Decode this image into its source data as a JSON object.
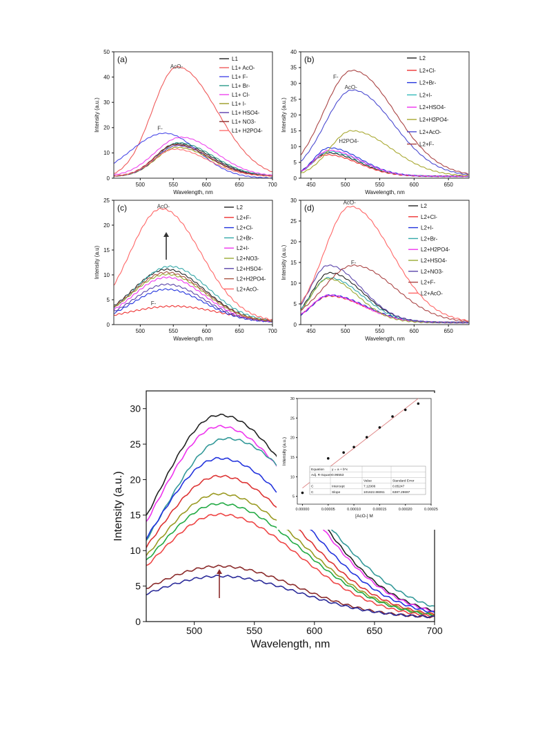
{
  "panels": [
    {
      "id": "a",
      "label": "(a)",
      "xlabel": "Wavelength, nm",
      "ylabel": "Intensity (a.u.)",
      "xlim": [
        460,
        700
      ],
      "ylim": [
        0,
        50
      ],
      "xticks": [
        500,
        550,
        600,
        650,
        700
      ],
      "yticks": [
        0,
        10,
        20,
        30,
        40,
        50
      ],
      "legend": [
        "L1",
        "L1+ AcO-",
        "L1+ F-",
        "L1+ Br-",
        "L1+ Cl-",
        "L1+ I-",
        "L1+ HSO4-",
        "L1+ NO3-",
        "L1+ H2PO4-"
      ],
      "annotations": [
        {
          "text": "AcO-",
          "x": 555,
          "y": 43.5
        },
        {
          "text": "F-",
          "x": 530,
          "y": 19
        }
      ]
    },
    {
      "id": "b",
      "label": "(b)",
      "xlabel": "Wavelength, nm",
      "ylabel": "Intensity (a.u.)",
      "xlim": [
        435,
        680
      ],
      "ylim": [
        0,
        40
      ],
      "xticks": [
        450,
        500,
        550,
        600,
        650
      ],
      "yticks": [
        0,
        5,
        10,
        15,
        20,
        25,
        30,
        35,
        40
      ],
      "legend": [
        "L2",
        "L2+Cl-",
        "L2+Br-",
        "L2+I-",
        "L2+HSO4-",
        "L2+H2PO4-",
        "L2+AcO-",
        "L2+F-"
      ],
      "annotations": [
        {
          "text": "F-",
          "x": 486,
          "y": 31.5
        },
        {
          "text": "AcO-",
          "x": 508,
          "y": 28.2
        },
        {
          "text": "H2PO4-",
          "x": 505,
          "y": 11.2
        }
      ]
    },
    {
      "id": "c",
      "label": "(c)",
      "xlabel": "Wavelength, nm",
      "ylabel": "Intensity (a.u)",
      "xlim": [
        460,
        700
      ],
      "ylim": [
        0,
        25
      ],
      "xticks": [
        500,
        550,
        600,
        650,
        700
      ],
      "yticks": [
        0,
        5,
        10,
        15,
        20,
        25
      ],
      "legend": [
        "L2",
        "L2+F-",
        "L2+Cl-",
        "L2+Br-",
        "L2+I-",
        "L2+NO3-",
        "L2+HSO4-",
        "L2+H2PO4-",
        "L2+AcO-"
      ],
      "annotations": [
        {
          "text": "AcO-",
          "x": 535,
          "y": 23.4
        },
        {
          "text": "F-",
          "x": 520,
          "y": 3.9
        }
      ]
    },
    {
      "id": "d",
      "label": "(d)",
      "xlabel": "Wavelength, nm",
      "ylabel": "Intensity (a.u.)",
      "xlim": [
        435,
        680
      ],
      "ylim": [
        0,
        30
      ],
      "xticks": [
        450,
        500,
        550,
        600,
        650
      ],
      "yticks": [
        0,
        5,
        10,
        15,
        20,
        25,
        30
      ],
      "legend": [
        "L2",
        "L2+Cl-",
        "L2+I-",
        "L2+Br-",
        "L2+H2PO4-",
        "L2+HSO4-",
        "L2+NO3-",
        "L2+F-",
        "L2+AcO-"
      ],
      "annotations": [
        {
          "text": "AcO-",
          "x": 506,
          "y": 29
        },
        {
          "text": "F-",
          "x": 512,
          "y": 14.5
        }
      ]
    },
    {
      "id": "e",
      "label": "",
      "xlabel": "Wavelength, nm",
      "ylabel": "Intensity (a.u.)",
      "xlim": [
        460,
        700
      ],
      "ylim": [
        0,
        32.5
      ],
      "xticks": [
        500,
        550,
        600,
        650,
        700
      ],
      "yticks": [
        0,
        5,
        10,
        15,
        20,
        25,
        30
      ],
      "legend": [],
      "annotations": []
    }
  ],
  "inset": {
    "ylabel": "Intensity (a.u.)",
    "xlabel": "[AcO-] M",
    "xlim": [
      -1e-05,
      0.00025
    ],
    "ylim": [
      3,
      30
    ],
    "xticks": [
      "0.00000",
      "0.00005",
      "0.00010",
      "0.00015",
      "0.00020",
      "0.00025"
    ],
    "yticks": [
      5,
      10,
      15,
      20,
      25,
      30
    ],
    "table": {
      "rows": [
        [
          "Equation",
          "y = a + b*x",
          "",
          ""
        ],
        [
          "Adj. R-Square",
          "0.96553",
          "",
          ""
        ],
        [
          "",
          "",
          "Value",
          "Standard Error"
        ],
        [
          "C",
          "Intercept",
          "7.12906",
          "0.85247"
        ],
        [
          "C",
          "Slope",
          "101622.86061",
          "6387.29697"
        ]
      ]
    }
  },
  "chart_data": [
    {
      "type": "line",
      "title": "(a)",
      "xlabel": "Wavelength, nm",
      "ylabel": "Intensity (a.u.)",
      "xlim": [
        460,
        700
      ],
      "ylim": [
        0,
        50
      ],
      "series": [
        {
          "name": "L1",
          "color": "#222222",
          "peak": 555,
          "amp": 13,
          "sL": 32,
          "sR": 52,
          "base": 0.7
        },
        {
          "name": "L1+ AcO-",
          "color": "#ef5a5a",
          "peak": 556,
          "amp": 44,
          "sL": 38,
          "sR": 60,
          "base": 0
        },
        {
          "name": "L1+ F-",
          "color": "#4a4ae8",
          "peak": 537,
          "amp": 17.8,
          "sL": 52,
          "sR": 50,
          "base": 0
        },
        {
          "name": "L1+ Br-",
          "color": "#2a9a8a",
          "peak": 558,
          "amp": 13.3,
          "sL": 32,
          "sR": 52,
          "base": 0.7
        },
        {
          "name": "L1+ Cl-",
          "color": "#ee44ee",
          "peak": 562,
          "amp": 15.5,
          "sL": 40,
          "sR": 52,
          "base": 0.7
        },
        {
          "name": "L1+ I-",
          "color": "#9a9a22",
          "peak": 556,
          "amp": 11.5,
          "sL": 32,
          "sR": 50,
          "base": 0.7
        },
        {
          "name": "L1+ HSO4-",
          "color": "#5a3aaa",
          "peak": 556,
          "amp": 12.2,
          "sL": 32,
          "sR": 50,
          "base": 0.7
        },
        {
          "name": "L1+ NO3-",
          "color": "#8a2a2a",
          "peak": 554,
          "amp": 12.6,
          "sL": 32,
          "sR": 50,
          "base": 0.7
        },
        {
          "name": "L1+ H2PO4-",
          "color": "#ff7070",
          "peak": 552,
          "amp": 10.8,
          "sL": 32,
          "sR": 50,
          "base": 0.7
        }
      ]
    },
    {
      "type": "line",
      "title": "(b)",
      "xlabel": "Wavelength, nm",
      "ylabel": "Intensity (a.u.)",
      "xlim": [
        435,
        680
      ],
      "ylim": [
        0,
        40
      ],
      "series": [
        {
          "name": "L2",
          "color": "#222222",
          "peak": 474,
          "amp": 7.4,
          "sL": 22,
          "sR": 46,
          "base": 0.6
        },
        {
          "name": "L2+Cl-",
          "color": "#ee3333",
          "peak": 473,
          "amp": 6.8,
          "sL": 22,
          "sR": 46,
          "base": 0.6
        },
        {
          "name": "L2+Br-",
          "color": "#2233dd",
          "peak": 476,
          "amp": 9.0,
          "sL": 22,
          "sR": 46,
          "base": 0.6
        },
        {
          "name": "L2+I-",
          "color": "#33bbbb",
          "peak": 476,
          "amp": 7.8,
          "sL": 22,
          "sR": 46,
          "base": 0.6
        },
        {
          "name": "L2+HSO4-",
          "color": "#ee33ee",
          "peak": 476,
          "amp": 8.2,
          "sL": 22,
          "sR": 46,
          "base": 0.6
        },
        {
          "name": "L2+H2PO4-",
          "color": "#a8a830",
          "peak": 509,
          "amp": 14.4,
          "sL": 32,
          "sR": 58,
          "base": 0.6
        },
        {
          "name": "L2+AcO-",
          "color": "#4a4ad0",
          "peak": 510,
          "amp": 27.3,
          "sL": 40,
          "sR": 60,
          "base": 0.6
        },
        {
          "name": "L2+F-",
          "color": "#aa4444",
          "peak": 510,
          "amp": 33.5,
          "sL": 42,
          "sR": 62,
          "base": 0.6
        }
      ]
    },
    {
      "type": "line",
      "title": "(c)",
      "xlabel": "Wavelength, nm",
      "ylabel": "Intensity (a.u)",
      "xlim": [
        460,
        700
      ],
      "ylim": [
        0,
        25
      ],
      "series": [
        {
          "name": "L2",
          "color": "#222222",
          "peak": 540,
          "amp": 10.6,
          "sL": 52,
          "sR": 58,
          "base": 0.5
        },
        {
          "name": "L2+F-",
          "color": "#ee3333",
          "peak": 550,
          "amp": 3.2,
          "sL": 70,
          "sR": 70,
          "base": 0.5
        },
        {
          "name": "L2+Cl-",
          "color": "#2233dd",
          "peak": 540,
          "amp": 6.6,
          "sL": 50,
          "sR": 56,
          "base": 0.5
        },
        {
          "name": "L2+Br-",
          "color": "#33a8a8",
          "peak": 545,
          "amp": 11.2,
          "sL": 52,
          "sR": 58,
          "base": 0.5
        },
        {
          "name": "L2+I-",
          "color": "#ee33ee",
          "peak": 540,
          "amp": 9.0,
          "sL": 50,
          "sR": 56,
          "base": 0.5
        },
        {
          "name": "L2+NO3-",
          "color": "#9aaa33",
          "peak": 540,
          "amp": 9.6,
          "sL": 52,
          "sR": 58,
          "base": 0.5
        },
        {
          "name": "L2+HSO4-",
          "color": "#5a44aa",
          "peak": 540,
          "amp": 7.6,
          "sL": 50,
          "sR": 56,
          "base": 0.5
        },
        {
          "name": "L2+H2PO4-",
          "color": "#aa5544",
          "peak": 540,
          "amp": 10.0,
          "sL": 52,
          "sR": 58,
          "base": 0.5
        },
        {
          "name": "L2+AcO-",
          "color": "#ff6666",
          "peak": 532,
          "amp": 22.8,
          "sL": 48,
          "sR": 60,
          "base": 0.5
        }
      ]
    },
    {
      "type": "line",
      "title": "(d)",
      "xlabel": "Wavelength, nm",
      "ylabel": "Intensity (a.u.)",
      "xlim": [
        435,
        680
      ],
      "ylim": [
        0,
        30
      ],
      "series": [
        {
          "name": "L2",
          "color": "#222222",
          "peak": 477,
          "amp": 12.0,
          "sL": 26,
          "sR": 48,
          "base": 0.5
        },
        {
          "name": "L2+Cl-",
          "color": "#ee3333",
          "peak": 476,
          "amp": 6.4,
          "sL": 26,
          "sR": 52,
          "base": 0.5
        },
        {
          "name": "L2+I-",
          "color": "#2233dd",
          "peak": 477,
          "amp": 6.6,
          "sL": 26,
          "sR": 52,
          "base": 0.5
        },
        {
          "name": "L2+Br-",
          "color": "#33a8a8",
          "peak": 476,
          "amp": 10.8,
          "sL": 26,
          "sR": 48,
          "base": 0.5
        },
        {
          "name": "L2+H2PO4-",
          "color": "#ee33ee",
          "peak": 476,
          "amp": 6.6,
          "sL": 26,
          "sR": 50,
          "base": 0.5
        },
        {
          "name": "L2+HSO4-",
          "color": "#9aaa33",
          "peak": 474,
          "amp": 10.6,
          "sL": 24,
          "sR": 44,
          "base": 0.5
        },
        {
          "name": "L2+NO3-",
          "color": "#5a44aa",
          "peak": 475,
          "amp": 13.8,
          "sL": 26,
          "sR": 48,
          "base": 0.5
        },
        {
          "name": "L2+F-",
          "color": "#aa4444",
          "peak": 512,
          "amp": 13.8,
          "sL": 44,
          "sR": 60,
          "base": 0.5
        },
        {
          "name": "L2+AcO-",
          "color": "#ff6666",
          "peak": 507,
          "amp": 28.0,
          "sL": 38,
          "sR": 60,
          "base": 0.5
        }
      ]
    },
    {
      "type": "line",
      "title": "",
      "xlabel": "Wavelength, nm",
      "ylabel": "Intensity (a.u.)",
      "xlim": [
        460,
        700
      ],
      "ylim": [
        0,
        32.5
      ],
      "series": [
        {
          "color": "#222222",
          "peak": 521,
          "amp": 28.7,
          "sL": 52,
          "sR": 70,
          "base": 0.4
        },
        {
          "color": "#ee33ee",
          "peak": 521,
          "amp": 27.1,
          "sL": 52,
          "sR": 70,
          "base": 0.4
        },
        {
          "color": "#339999",
          "peak": 527,
          "amp": 25.4,
          "sL": 52,
          "sR": 74,
          "base": 0.4
        },
        {
          "color": "#2233dd",
          "peak": 521,
          "amp": 22.6,
          "sL": 52,
          "sR": 70,
          "base": 0.4
        },
        {
          "color": "#dd3333",
          "peak": 521,
          "amp": 20.1,
          "sL": 52,
          "sR": 68,
          "base": 0.4
        },
        {
          "color": "#9a9a22",
          "peak": 521,
          "amp": 17.6,
          "sL": 52,
          "sR": 68,
          "base": 0.4
        },
        {
          "color": "#22aa44",
          "peak": 521,
          "amp": 16.2,
          "sL": 52,
          "sR": 68,
          "base": 0.4
        },
        {
          "color": "#ee4444",
          "peak": 521,
          "amp": 14.7,
          "sL": 52,
          "sR": 66,
          "base": 0.4
        },
        {
          "color": "#8a2a2a",
          "peak": 521,
          "amp": 7.3,
          "sL": 58,
          "sR": 64,
          "base": 0.5
        },
        {
          "color": "#2a2a99",
          "peak": 521,
          "amp": 5.9,
          "sL": 58,
          "sR": 66,
          "base": 0.5
        }
      ]
    },
    {
      "type": "scatter",
      "title": "",
      "xlabel": "[AcO-] M",
      "ylabel": "Intensity (a.u.)",
      "x": [
        0.0,
        3e-05,
        5e-05,
        8e-05,
        0.0001,
        0.000125,
        0.00015,
        0.000175,
        0.0002,
        0.000225
      ],
      "y": [
        5.9,
        7.3,
        14.7,
        16.2,
        17.6,
        20.1,
        22.6,
        25.4,
        27.1,
        28.7
      ],
      "fit": {
        "intercept": 7.12906,
        "slope": 101622.86061,
        "x_range": [
          0.0,
          0.000225
        ]
      }
    }
  ]
}
